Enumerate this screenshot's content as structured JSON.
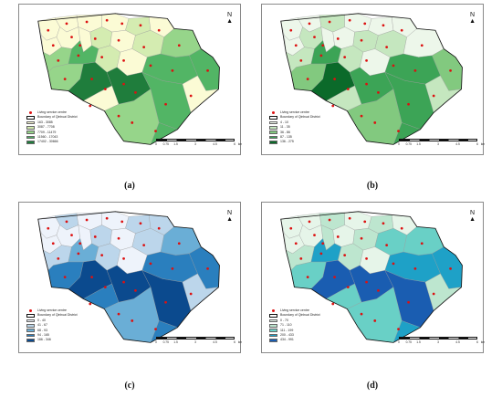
{
  "legend": {
    "centres_label": "Living service centre",
    "boundary_label": "Boundary of Qinhuai District"
  },
  "north": {
    "arrow": "▲",
    "letter": "N"
  },
  "scale": {
    "ticks": [
      "0",
      "0.75",
      "1.5",
      "3",
      "4.5",
      "6"
    ],
    "unit": "km"
  },
  "panels": [
    {
      "caption": "(a)",
      "colors": [
        "#fbfbd5",
        "#d4ecb1",
        "#96d58a",
        "#52b565",
        "#1f7d3c"
      ],
      "classes": [
        "163 - 3085",
        "3087 - 7708",
        "7709 - 11479",
        "11560 - 17043",
        "17402 - 30666"
      ]
    },
    {
      "caption": "(b)",
      "colors": [
        "#edf7ea",
        "#c5e7bf",
        "#82c97f",
        "#3ca456",
        "#0b6a2a"
      ],
      "classes": [
        "4 - 10",
        "11 - 35",
        "36 - 86",
        "87 - 135",
        "136 - 275"
      ]
    },
    {
      "caption": "(c)",
      "colors": [
        "#eef3fb",
        "#bcd6eb",
        "#6aaed6",
        "#2a7fbe",
        "#0b4a8e"
      ],
      "classes": [
        "0 - 40",
        "41 - 67",
        "68 - 93",
        "94 - 165",
        "166 - 346"
      ]
    },
    {
      "caption": "(d)",
      "colors": [
        "#e6f5e9",
        "#bde6cf",
        "#69d0c6",
        "#1ea1c7",
        "#1a5db1"
      ],
      "classes": [
        "0 - 70",
        "71 - 110",
        "111 - 199",
        "200 - 433",
        "434 - 991"
      ]
    }
  ]
}
